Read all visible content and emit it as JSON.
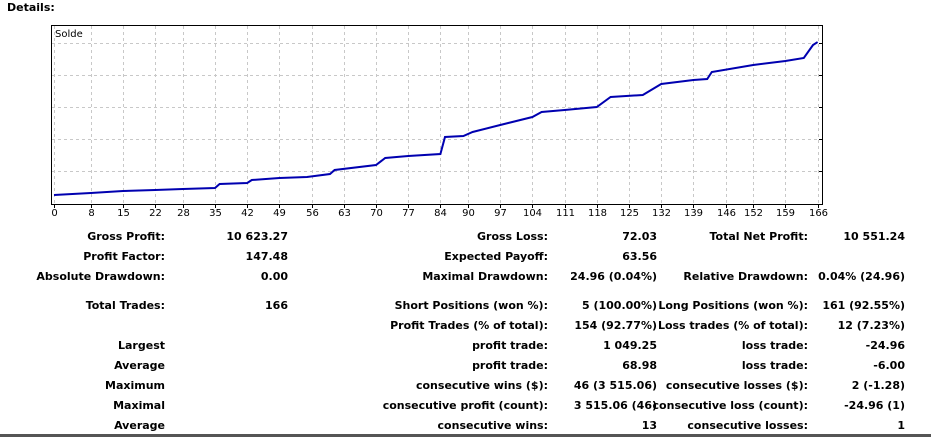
{
  "header": {
    "title": "Details:"
  },
  "chart_data": {
    "type": "line",
    "title": "Solde",
    "xlabel": "",
    "ylabel": "",
    "x_ticks": [
      0,
      8,
      15,
      22,
      28,
      35,
      42,
      49,
      56,
      63,
      70,
      77,
      84,
      90,
      97,
      104,
      111,
      118,
      125,
      132,
      139,
      146,
      152,
      159,
      166
    ],
    "xlim": [
      0,
      166
    ],
    "grid": true,
    "series": [
      {
        "name": "Solde",
        "color": "#0000b0",
        "note_units": "approx. cumulative net profit",
        "x": [
          0,
          8,
          15,
          22,
          28,
          35,
          36,
          42,
          43,
          49,
          55,
          60,
          61,
          70,
          72,
          77,
          84,
          85,
          89,
          91,
          97,
          104,
          106,
          111,
          118,
          121,
          128,
          132,
          139,
          142,
          143,
          152,
          159,
          163,
          165,
          166
        ],
        "y": [
          0,
          138,
          276,
          345,
          414,
          483,
          759,
          828,
          1035,
          1173,
          1242,
          1449,
          1725,
          2070,
          2553,
          2691,
          2829,
          4002,
          4071,
          4347,
          4830,
          5382,
          5727,
          5865,
          6072,
          6762,
          6900,
          7659,
          7935,
          8004,
          8487,
          8970,
          9246,
          9453,
          10350,
          10551
        ]
      }
    ]
  },
  "stats": [
    [
      "Gross Profit:",
      "10 623.27",
      "Gross Loss:",
      "72.03",
      "Total Net Profit:",
      "10 551.24"
    ],
    [
      "Profit Factor:",
      "147.48",
      "Expected Payoff:",
      "63.56",
      "",
      ""
    ],
    [
      "Absolute Drawdown:",
      "0.00",
      "Maximal Drawdown:",
      "24.96 (0.04%)",
      "Relative Drawdown:",
      "0.04% (24.96)"
    ],
    [
      "Total Trades:",
      "166",
      "Short Positions (won %):",
      "5 (100.00%)",
      "Long Positions (won %):",
      "161 (92.55%)"
    ],
    [
      "",
      "",
      "Profit Trades (% of total):",
      "154 (92.77%)",
      "Loss trades (% of total):",
      "12 (7.23%)"
    ],
    [
      "Largest",
      "",
      "profit trade:",
      "1 049.25",
      "loss trade:",
      "-24.96"
    ],
    [
      "Average",
      "",
      "profit trade:",
      "68.98",
      "loss trade:",
      "-6.00"
    ],
    [
      "Maximum",
      "",
      "consecutive wins ($):",
      "46 (3 515.06)",
      "consecutive losses ($):",
      "2 (-1.28)"
    ],
    [
      "Maximal",
      "",
      "consecutive profit (count):",
      "3 515.06 (46)",
      "consecutive loss (count):",
      "-24.96 (1)"
    ],
    [
      "Average",
      "",
      "consecutive wins:",
      "13",
      "consecutive losses:",
      "1"
    ]
  ]
}
